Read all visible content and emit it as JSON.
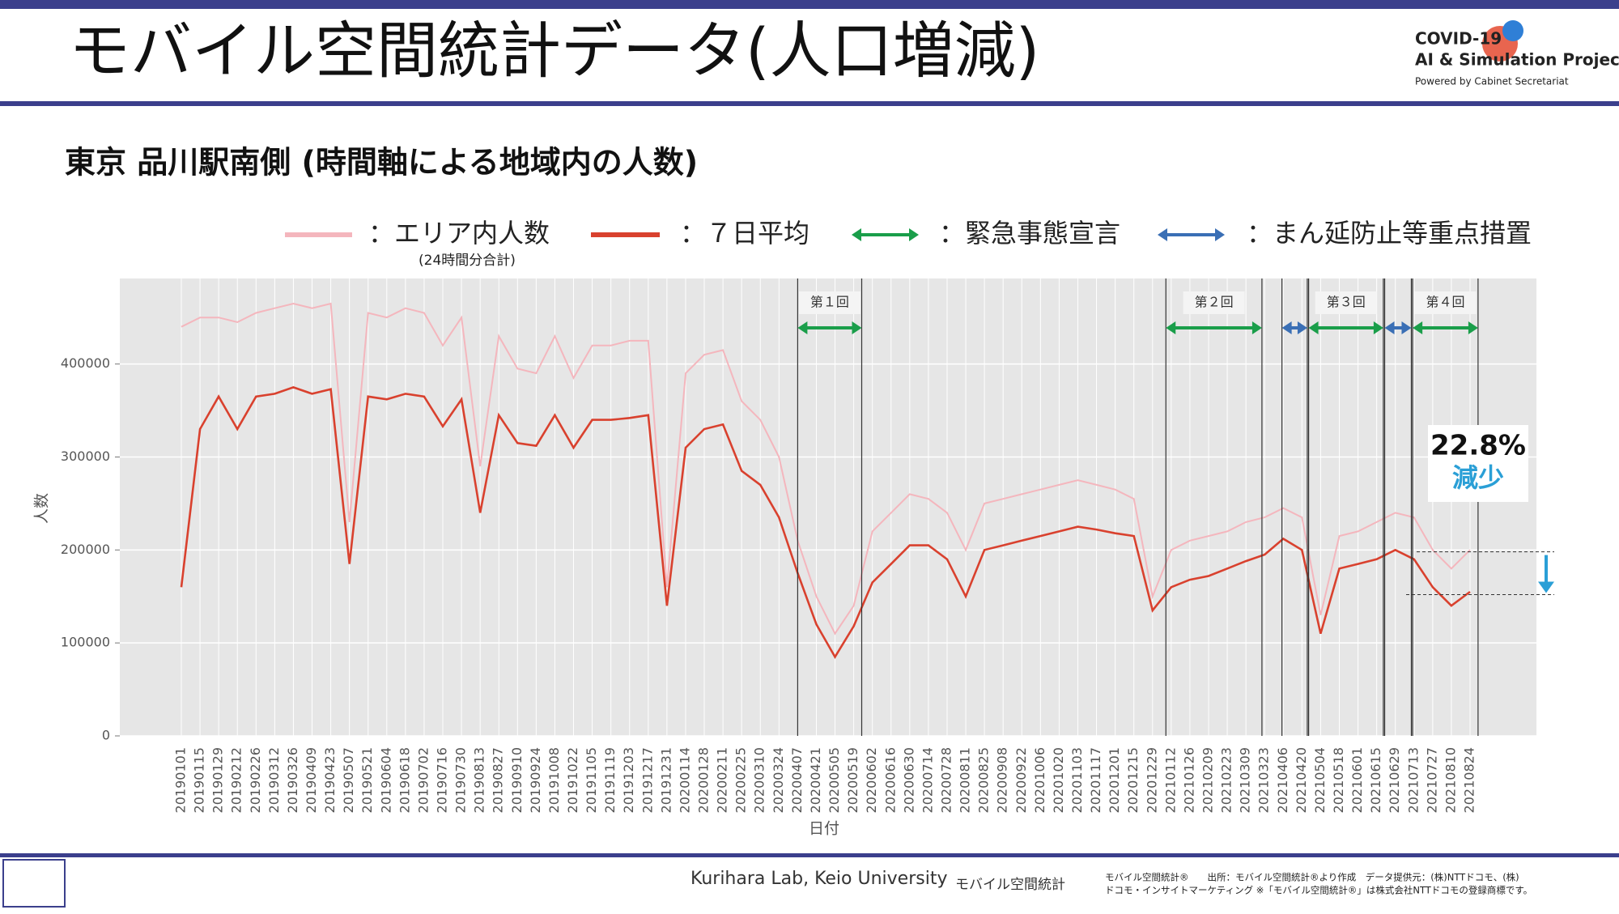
{
  "header": {
    "title": "モバイル空間統計データ(人口増減)",
    "logo": [
      "COVID-19",
      "AI & Simulation Project",
      "Powered by Cabinet Secretariat"
    ]
  },
  "chart_data": {
    "type": "line",
    "title": "東京 品川駅南側 (時間軸による地域内の人数)",
    "x_label": "日付",
    "y_label": "人数",
    "categories": [
      "20190101",
      "20190115",
      "20190129",
      "20190212",
      "20190226",
      "20190312",
      "20190326",
      "20190409",
      "20190423",
      "20190507",
      "20190521",
      "20190604",
      "20190618",
      "20190702",
      "20190716",
      "20190730",
      "20190813",
      "20190827",
      "20190910",
      "20190924",
      "20191008",
      "20191022",
      "20191105",
      "20191119",
      "20191203",
      "20191217",
      "20191231",
      "20200114",
      "20200128",
      "20200211",
      "20200225",
      "20200310",
      "20200324",
      "20200407",
      "20200421",
      "20200505",
      "20200519",
      "20200602",
      "20200616",
      "20200630",
      "20200714",
      "20200728",
      "20200811",
      "20200825",
      "20200908",
      "20200922",
      "20201006",
      "20201020",
      "20201103",
      "20201117",
      "20201201",
      "20201215",
      "20201229",
      "20210112",
      "20210126",
      "20210209",
      "20210223",
      "20210309",
      "20210323",
      "20210406",
      "20210420",
      "20210504",
      "20210518",
      "20210601",
      "20210615",
      "20210629",
      "20210713",
      "20210727",
      "20210810",
      "20210824"
    ],
    "series": [
      {
        "name": "：エリア内人数",
        "note": "(24時間分合計)",
        "color": "#f4b6bd",
        "values": [
          440000,
          450000,
          450000,
          445000,
          455000,
          460000,
          465000,
          460000,
          465000,
          230000,
          455000,
          450000,
          460000,
          455000,
          420000,
          450000,
          290000,
          430000,
          395000,
          390000,
          430000,
          385000,
          420000,
          420000,
          425000,
          425000,
          160000,
          390000,
          410000,
          415000,
          360000,
          340000,
          300000,
          210000,
          150000,
          110000,
          140000,
          220000,
          240000,
          260000,
          255000,
          240000,
          200000,
          250000,
          255000,
          260000,
          265000,
          270000,
          275000,
          270000,
          265000,
          255000,
          150000,
          200000,
          210000,
          215000,
          220000,
          230000,
          235000,
          245000,
          235000,
          130000,
          215000,
          220000,
          230000,
          240000,
          235000,
          200000,
          180000,
          200000
        ]
      },
      {
        "name": "：７日平均",
        "color": "#d9412e",
        "values": [
          160000,
          330000,
          365000,
          330000,
          365000,
          368000,
          375000,
          368000,
          373000,
          185000,
          365000,
          362000,
          368000,
          365000,
          333000,
          362000,
          240000,
          345000,
          315000,
          312000,
          345000,
          310000,
          340000,
          340000,
          342000,
          345000,
          140000,
          310000,
          330000,
          335000,
          285000,
          270000,
          235000,
          175000,
          120000,
          85000,
          118000,
          165000,
          185000,
          205000,
          205000,
          190000,
          150000,
          200000,
          205000,
          210000,
          215000,
          220000,
          225000,
          222000,
          218000,
          215000,
          135000,
          160000,
          168000,
          172000,
          180000,
          188000,
          195000,
          212000,
          200000,
          110000,
          180000,
          185000,
          190000,
          200000,
          190000,
          160000,
          140000,
          155000
        ]
      }
    ],
    "emergency": {
      "name": "：緊急事態宣言",
      "color": "#1a9e4a",
      "periods": [
        {
          "label": "第１回",
          "start": "20200407",
          "end": "20200525"
        },
        {
          "label": "第２回",
          "start": "20210108",
          "end": "20210321"
        },
        {
          "label": "第３回",
          "start": "20210425",
          "end": "20210620"
        },
        {
          "label": "第４回",
          "start": "20210712",
          "end": "20210830"
        }
      ]
    },
    "priority": {
      "name": "：まん延防止等重点措置",
      "color": "#3a6fb5",
      "periods": [
        {
          "start": "20210405",
          "end": "20210424"
        },
        {
          "start": "20210621",
          "end": "20210711"
        }
      ]
    },
    "annotation": {
      "text": "22.8%",
      "sub": "減少",
      "from": 198000,
      "to": 152000
    },
    "ylim": [
      0,
      492000
    ],
    "yticks": [
      0,
      100000,
      200000,
      300000,
      400000
    ],
    "grid": true
  },
  "footer": {
    "lab": "Kurihara Lab, Keio University",
    "brand": "モバイル空間統計",
    "source1": "モバイル空間統計®　　出所：モバイル空間統計®より作成　データ提供元：(株)NTTドコモ、(株)",
    "source2": "ドコモ・インサイトマーケティング ※「モバイル空間統計®」は株式会社NTTドコモの登録商標です。"
  }
}
